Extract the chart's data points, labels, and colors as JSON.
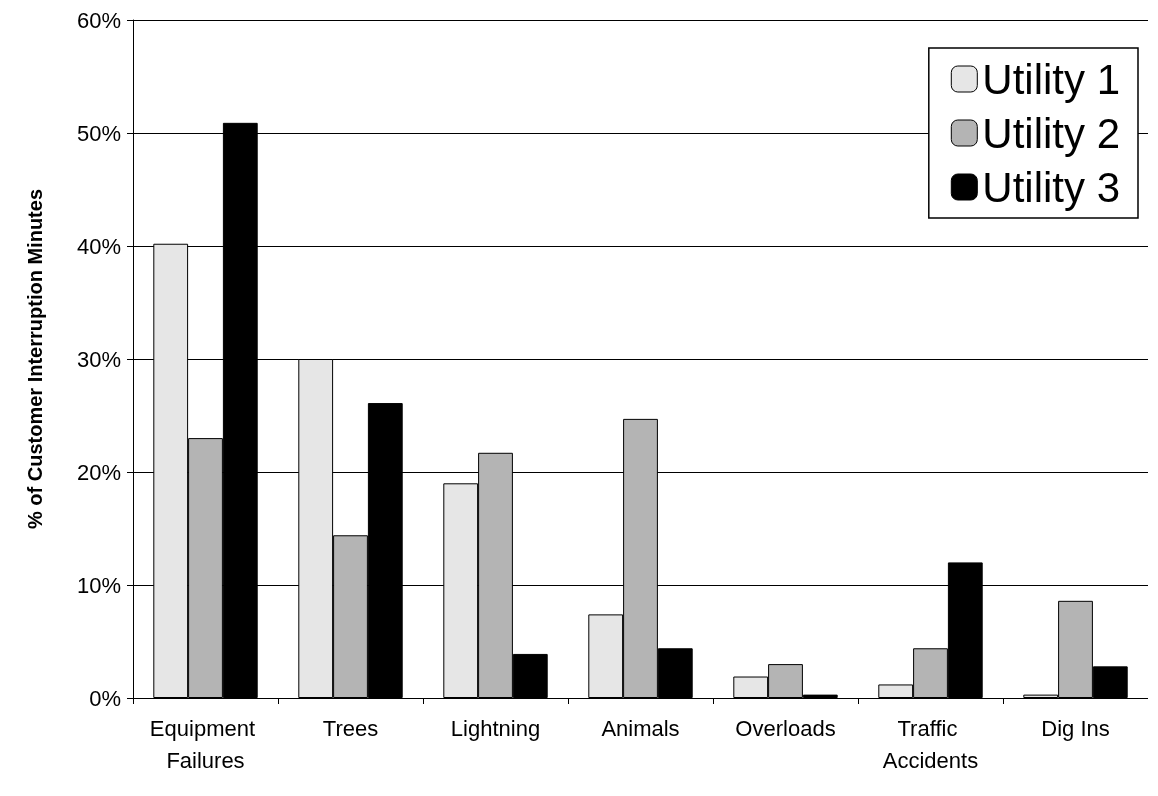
{
  "chart_data": {
    "type": "bar",
    "ylabel": "% of Customer Interruption Minutes",
    "categories": [
      "Equipment Failures",
      "Trees",
      "Lightning",
      "Animals",
      "Overloads",
      "Traffic Accidents",
      "Dig Ins"
    ],
    "series": [
      {
        "name": "Utility 1",
        "color": "#e6e6e6",
        "values": [
          40.2,
          30.0,
          19.0,
          7.4,
          1.9,
          1.2,
          0.3
        ]
      },
      {
        "name": "Utility 2",
        "color": "#b4b4b4",
        "values": [
          23.0,
          14.4,
          21.7,
          24.7,
          3.0,
          4.4,
          8.6
        ]
      },
      {
        "name": "Utility 3",
        "color": "#000000",
        "values": [
          50.9,
          26.1,
          3.9,
          4.4,
          0.3,
          12.0,
          2.8
        ]
      }
    ],
    "ylim": [
      0,
      60
    ],
    "yticks": [
      {
        "value": 0,
        "label": "0%"
      },
      {
        "value": 10,
        "label": "10%"
      },
      {
        "value": 20,
        "label": "20%"
      },
      {
        "value": 30,
        "label": "30%"
      },
      {
        "value": 40,
        "label": "40%"
      },
      {
        "value": 50,
        "label": "50%"
      },
      {
        "value": 60,
        "label": "60%"
      }
    ],
    "grid": "y",
    "legend": "top right"
  }
}
